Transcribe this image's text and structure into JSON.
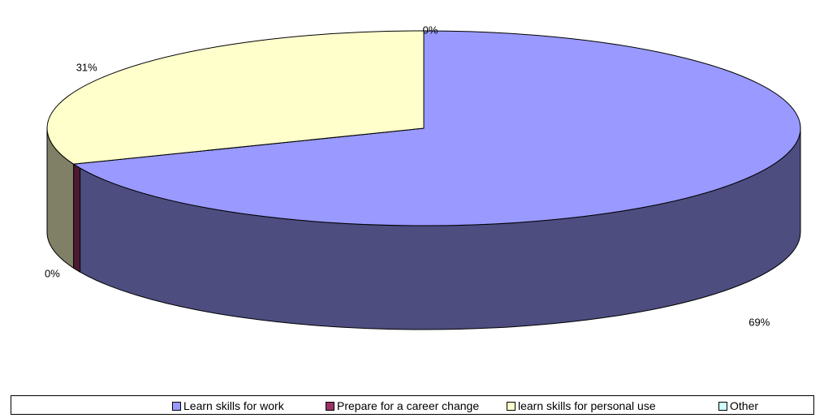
{
  "chart_data": {
    "type": "pie",
    "title": "",
    "categories": [
      "Learn skills for work",
      "Prepare for a career change",
      "learn skills for personal use",
      "Other"
    ],
    "values": [
      69,
      0,
      31,
      0
    ],
    "labels": [
      "69%",
      "0%",
      "31%",
      "0%"
    ],
    "colors": [
      "#9999FF",
      "#993366",
      "#FFFFCC",
      "#CCFFFF"
    ],
    "side_colors": [
      "#4D4D80",
      "#4D1A33",
      "#808066",
      "#668080"
    ],
    "legend": "bottom",
    "three_d": true
  }
}
